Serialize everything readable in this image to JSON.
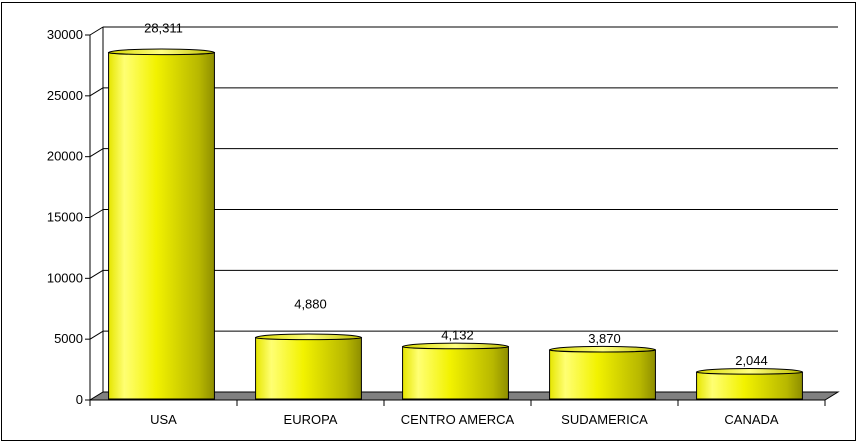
{
  "chart_data": {
    "type": "bar",
    "categories": [
      "USA",
      "EUROPA",
      "CENTRO AMERCA",
      "SUDAMERICA",
      "CANADA"
    ],
    "values": [
      28311,
      4880,
      4132,
      3870,
      2044
    ],
    "data_labels": [
      "28,311",
      "4,880",
      "4,132",
      "3,870",
      "2,044"
    ],
    "title": "",
    "xlabel": "",
    "ylabel": "",
    "ylim": [
      0,
      30000
    ],
    "yticks": [
      0,
      5000,
      10000,
      15000,
      20000,
      25000,
      30000
    ],
    "ytick_labels": [
      "0",
      "5000",
      "10000",
      "15000",
      "20000",
      "25000",
      "30000"
    ],
    "grid": true,
    "style": "3d-cylinder",
    "colors": {
      "bar_light": "#ffff66",
      "bar_mid": "#f0f000",
      "bar_dark": "#a8a800",
      "floor": "#808080",
      "grid": "#000000",
      "frame": "#000000"
    }
  }
}
